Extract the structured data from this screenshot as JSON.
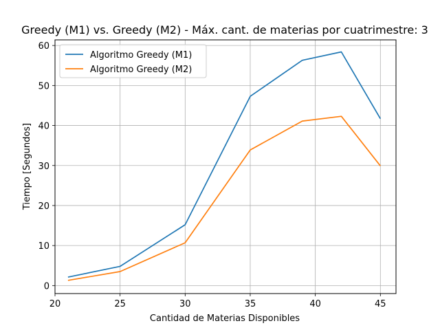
{
  "chart_data": {
    "type": "line",
    "title": "Greedy (M1) vs. Greedy (M2) - Máx. cant. de materias por cuatrimestre: 3",
    "xlabel": "Cantidad de Materias Disponibles",
    "ylabel": "Tiempo [Segundos]",
    "x": [
      21,
      25,
      30,
      35,
      39,
      42,
      45
    ],
    "xlim": [
      20,
      46.2
    ],
    "ylim": [
      -2,
      61.4
    ],
    "xticks": [
      20,
      25,
      30,
      35,
      40,
      45
    ],
    "yticks": [
      0,
      10,
      20,
      30,
      40,
      50,
      60
    ],
    "grid": true,
    "legend_position": "top-left",
    "series": [
      {
        "name": "Algoritmo Greedy (M1)",
        "color": "#1f77b4",
        "values": [
          2.1,
          4.8,
          15.2,
          47.3,
          56.3,
          58.4,
          41.7
        ]
      },
      {
        "name": "Algoritmo Greedy (M2)",
        "color": "#ff7f0e",
        "values": [
          1.3,
          3.5,
          10.7,
          33.9,
          41.1,
          42.3,
          29.9
        ]
      }
    ]
  }
}
